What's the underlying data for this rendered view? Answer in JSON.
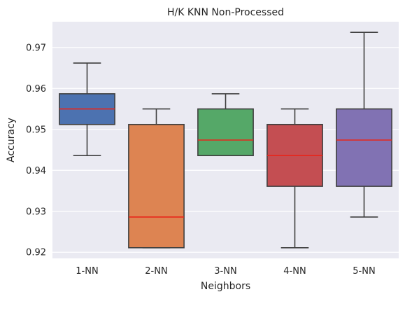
{
  "chart_data": {
    "type": "box",
    "title": "H/K KNN Non-Processed",
    "xlabel": "Neighbors",
    "ylabel": "Accuracy",
    "ylim": [
      0.9185,
      0.9763
    ],
    "yticks": [
      0.92,
      0.93,
      0.94,
      0.95,
      0.96,
      0.97
    ],
    "ytick_labels": [
      "0.92",
      "0.93",
      "0.94",
      "0.95",
      "0.96",
      "0.97"
    ],
    "grid": true,
    "median_color": "#e8261a",
    "background_color": "#eaeaf2",
    "categories": [
      "1-NN",
      "2-NN",
      "3-NN",
      "4-NN",
      "5-NN"
    ],
    "boxes": [
      {
        "whisker_low": 0.9436,
        "q1": 0.9512,
        "median": 0.955,
        "q3": 0.9587,
        "whisker_high": 0.9662,
        "color": "#4c72b0"
      },
      {
        "whisker_low": 0.9211,
        "q1": 0.9211,
        "median": 0.9286,
        "q3": 0.9512,
        "whisker_high": 0.955,
        "color": "#dd8452"
      },
      {
        "whisker_low": 0.9436,
        "q1": 0.9436,
        "median": 0.9474,
        "q3": 0.955,
        "whisker_high": 0.9587,
        "color": "#55a868"
      },
      {
        "whisker_low": 0.9211,
        "q1": 0.9361,
        "median": 0.9436,
        "q3": 0.9512,
        "whisker_high": 0.955,
        "color": "#c44e52"
      },
      {
        "whisker_low": 0.9286,
        "q1": 0.9361,
        "median": 0.9474,
        "q3": 0.955,
        "whisker_high": 0.9737,
        "color": "#8172b3"
      }
    ]
  }
}
